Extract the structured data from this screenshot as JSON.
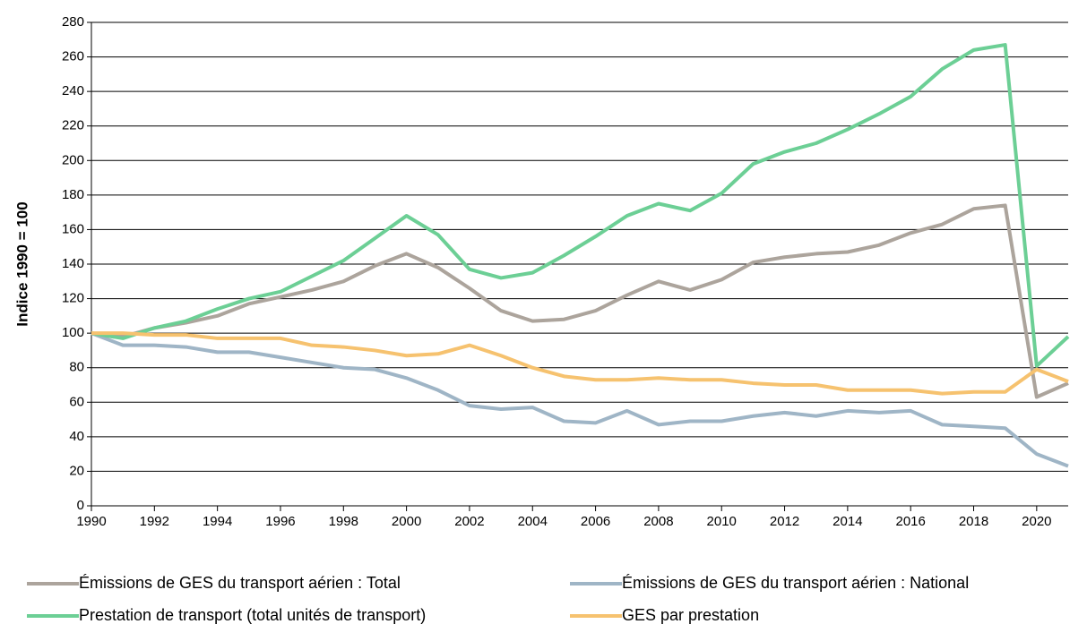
{
  "chart_data": {
    "type": "line",
    "y_label": "Indice 1990 = 100",
    "x": [
      1990,
      1991,
      1992,
      1993,
      1994,
      1995,
      1996,
      1997,
      1998,
      1999,
      2000,
      2001,
      2002,
      2003,
      2004,
      2005,
      2006,
      2007,
      2008,
      2009,
      2010,
      2011,
      2012,
      2013,
      2014,
      2015,
      2016,
      2017,
      2018,
      2019,
      2020,
      2021
    ],
    "series": [
      {
        "name": "Émissions de GES du transport aérien : Total",
        "color": "#aca49c",
        "values": [
          100,
          98,
          103,
          106,
          110,
          117,
          121,
          125,
          130,
          139,
          146,
          138,
          126,
          113,
          107,
          108,
          113,
          122,
          130,
          125,
          131,
          141,
          144,
          146,
          147,
          151,
          158,
          163,
          172,
          174,
          63,
          71
        ]
      },
      {
        "name": "Émissions de GES du transport aérien : National",
        "color": "#9fb5c6",
        "values": [
          100,
          93,
          93,
          92,
          89,
          89,
          86,
          83,
          80,
          79,
          74,
          67,
          58,
          56,
          57,
          49,
          48,
          55,
          47,
          49,
          49,
          52,
          54,
          52,
          55,
          54,
          55,
          47,
          46,
          45,
          30,
          23
        ]
      },
      {
        "name": "Prestation de transport (total unités de transport)",
        "color": "#6ccf95",
        "values": [
          100,
          97,
          103,
          107,
          114,
          120,
          124,
          133,
          142,
          155,
          168,
          157,
          137,
          132,
          135,
          145,
          156,
          168,
          175,
          171,
          181,
          198,
          205,
          210,
          218,
          227,
          237,
          253,
          264,
          267,
          81,
          98
        ]
      },
      {
        "name": "GES par prestation",
        "color": "#f6c26f",
        "values": [
          100,
          100,
          99,
          99,
          97,
          97,
          97,
          93,
          92,
          90,
          87,
          88,
          93,
          87,
          80,
          75,
          73,
          73,
          74,
          73,
          73,
          71,
          70,
          70,
          67,
          67,
          67,
          65,
          66,
          66,
          79,
          72
        ]
      }
    ],
    "xlim": [
      1990,
      2021
    ],
    "xticks": [
      1990,
      1992,
      1994,
      1996,
      1998,
      2000,
      2002,
      2004,
      2006,
      2008,
      2010,
      2012,
      2014,
      2016,
      2018,
      2020
    ],
    "ylim": [
      0,
      280
    ],
    "yticks": [
      0,
      20,
      40,
      60,
      80,
      100,
      120,
      140,
      160,
      180,
      200,
      220,
      240,
      260,
      280
    ],
    "grid": true
  }
}
